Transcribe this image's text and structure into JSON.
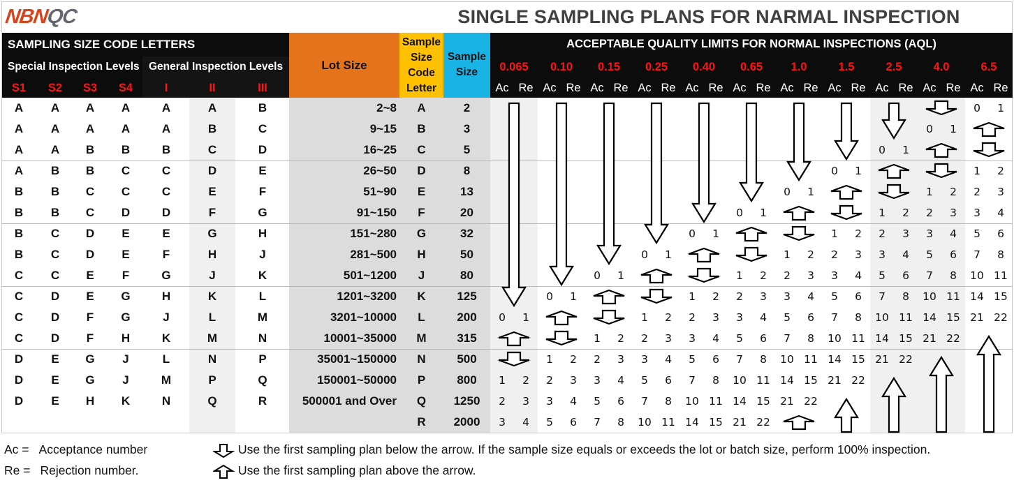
{
  "header": {
    "logo_part1": "NBN",
    "logo_part2": "QC",
    "title": "SINGLE SAMPLING PLANS FOR NARMAL INSPECTION"
  },
  "colors": {
    "logo_orange": "#d5441c",
    "logo_gray": "#66666e",
    "header_black": "#0c0c0c",
    "lot_size_orange": "#e5731c",
    "code_letter_yellow": "#ffc000",
    "sample_size_blue": "#1ab3e6",
    "level_red": "#ff1414",
    "band_gray": "#dcdcdc",
    "col_gray": "#f0f0f0"
  },
  "table_header": {
    "code_letters_title": "SAMPLING SIZE CODE LETTERS",
    "special_levels": "Special Inspection Levels",
    "general_levels": "General Inspection Levels",
    "levels": [
      "S1",
      "S2",
      "S3",
      "S4",
      "I",
      "II",
      "III"
    ],
    "lot_size": "Lot Size",
    "code_letter": [
      "Sample",
      "Size",
      "Code",
      "Letter"
    ],
    "sample_size": [
      "Sample",
      "Size"
    ],
    "aql_title": "ACCEPTABLE QUALITY LIMITS FOR NORMAL INSPECTIONS (AQL)",
    "aql_values": [
      "0.065",
      "0.10",
      "0.15",
      "0.25",
      "0.40",
      "0.65",
      "1.0",
      "1.5",
      "2.5",
      "4.0",
      "6.5"
    ],
    "ac_label": "Ac",
    "re_label": "Re"
  },
  "rows": [
    {
      "levels": [
        "A",
        "A",
        "A",
        "A",
        "A",
        "A",
        "B"
      ],
      "lot": "2~8",
      "code": "A",
      "size": "2",
      "aql": [
        "L",
        "L",
        "L",
        "L",
        "L",
        "L",
        "L",
        "L",
        "L",
        "D",
        "0 1"
      ]
    },
    {
      "levels": [
        "A",
        "A",
        "A",
        "A",
        "A",
        "B",
        "C"
      ],
      "lot": "9~15",
      "code": "B",
      "size": "3",
      "aql": [
        "L",
        "L",
        "L",
        "L",
        "L",
        "L",
        "L",
        "L",
        "L",
        "0 1",
        "U"
      ]
    },
    {
      "levels": [
        "A",
        "A",
        "B",
        "B",
        "B",
        "C",
        "D"
      ],
      "lot": "16~25",
      "code": "C",
      "size": "5",
      "aql": [
        "L",
        "L",
        "L",
        "L",
        "L",
        "L",
        "L",
        "L",
        "0 1",
        "U",
        "D"
      ]
    },
    {
      "levels": [
        "A",
        "B",
        "B",
        "C",
        "C",
        "D",
        "E"
      ],
      "lot": "26~50",
      "code": "D",
      "size": "8",
      "aql": [
        "L",
        "L",
        "L",
        "L",
        "L",
        "L",
        "L",
        "0 1",
        "U",
        "D",
        "1 2"
      ]
    },
    {
      "levels": [
        "B",
        "B",
        "C",
        "C",
        "C",
        "E",
        "F"
      ],
      "lot": "51~90",
      "code": "E",
      "size": "13",
      "aql": [
        "L",
        "L",
        "L",
        "L",
        "L",
        "L",
        "0 1",
        "U",
        "D",
        "1 2",
        "2 3"
      ]
    },
    {
      "levels": [
        "B",
        "B",
        "C",
        "D",
        "D",
        "F",
        "G"
      ],
      "lot": "91~150",
      "code": "F",
      "size": "20",
      "aql": [
        "L",
        "L",
        "L",
        "L",
        "L",
        "0 1",
        "U",
        "D",
        "1 2",
        "2 3",
        "3 4"
      ]
    },
    {
      "levels": [
        "B",
        "C",
        "D",
        "E",
        "E",
        "G",
        "H"
      ],
      "lot": "151~280",
      "code": "G",
      "size": "32",
      "aql": [
        "L",
        "L",
        "L",
        "L",
        "0 1",
        "U",
        "D",
        "1 2",
        "2 3",
        "3 4",
        "5 6"
      ]
    },
    {
      "levels": [
        "B",
        "C",
        "D",
        "E",
        "F",
        "H",
        "J"
      ],
      "lot": "281~500",
      "code": "H",
      "size": "50",
      "aql": [
        "L",
        "L",
        "L",
        "0 1",
        "U",
        "D",
        "1 2",
        "2 3",
        "3 4",
        "5 6",
        "7 8"
      ]
    },
    {
      "levels": [
        "C",
        "C",
        "E",
        "F",
        "G",
        "J",
        "K"
      ],
      "lot": "501~1200",
      "code": "J",
      "size": "80",
      "aql": [
        "L",
        "L",
        "0 1",
        "U",
        "D",
        "1 2",
        "2 3",
        "3 4",
        "5 6",
        "7 8",
        "10 11"
      ]
    },
    {
      "levels": [
        "C",
        "D",
        "E",
        "G",
        "H",
        "K",
        "L"
      ],
      "lot": "1201~3200",
      "code": "K",
      "size": "125",
      "aql": [
        "L",
        "0 1",
        "U",
        "D",
        "1 2",
        "2 3",
        "3 4",
        "5 6",
        "7 8",
        "10 11",
        "14 15"
      ]
    },
    {
      "levels": [
        "C",
        "D",
        "F",
        "G",
        "J",
        "L",
        "M"
      ],
      "lot": "3201~10000",
      "code": "L",
      "size": "200",
      "aql": [
        "0 1",
        "U",
        "D",
        "1 2",
        "2 3",
        "3 4",
        "5 6",
        "7 8",
        "10 11",
        "14 15",
        "21 22"
      ]
    },
    {
      "levels": [
        "C",
        "D",
        "F",
        "H",
        "K",
        "M",
        "N"
      ],
      "lot": "10001~35000",
      "code": "M",
      "size": "315",
      "aql": [
        "U",
        "D",
        "1 2",
        "2 3",
        "3 4",
        "5 6",
        "7 8",
        "10 11",
        "14 15",
        "21 22",
        "L"
      ]
    },
    {
      "levels": [
        "D",
        "E",
        "G",
        "J",
        "L",
        "N",
        "P"
      ],
      "lot": "35001~150000",
      "code": "N",
      "size": "500",
      "aql": [
        "D",
        "1 2",
        "2 3",
        "3 4",
        "5 6",
        "7 8",
        "10 11",
        "14 15",
        "21 22",
        "L",
        "L"
      ]
    },
    {
      "levels": [
        "D",
        "E",
        "G",
        "J",
        "M",
        "P",
        "Q"
      ],
      "lot": "150001~50000",
      "code": "P",
      "size": "800",
      "aql": [
        "1 2",
        "2 3",
        "3 4",
        "5 6",
        "7 8",
        "10 11",
        "14 15",
        "21 22",
        "L",
        "L",
        "L"
      ]
    },
    {
      "levels": [
        "D",
        "E",
        "H",
        "K",
        "N",
        "Q",
        "R"
      ],
      "lot": "500001 and Over",
      "code": "Q",
      "size": "1250",
      "aql": [
        "2 3",
        "3 4",
        "5 6",
        "7 8",
        "10 11",
        "14 15",
        "21 22",
        "L",
        "L",
        "L",
        "L"
      ]
    },
    {
      "levels": [
        "",
        "",
        "",
        "",
        "",
        "",
        ""
      ],
      "lot": "",
      "code": "R",
      "size": "2000",
      "aql": [
        "3 4",
        "5 6",
        "7 8",
        "10 11",
        "14 15",
        "21 22",
        "U",
        "L",
        "L",
        "L",
        "L"
      ]
    }
  ],
  "long_arrows": [
    {
      "col": 0,
      "dir": "down",
      "from": 0,
      "to": 9
    },
    {
      "col": 1,
      "dir": "down",
      "from": 0,
      "to": 8
    },
    {
      "col": 2,
      "dir": "down",
      "from": 0,
      "to": 7
    },
    {
      "col": 3,
      "dir": "down",
      "from": 0,
      "to": 6
    },
    {
      "col": 4,
      "dir": "down",
      "from": 0,
      "to": 5
    },
    {
      "col": 5,
      "dir": "down",
      "from": 0,
      "to": 4
    },
    {
      "col": 6,
      "dir": "down",
      "from": 0,
      "to": 3
    },
    {
      "col": 7,
      "dir": "down",
      "from": 0,
      "to": 2
    },
    {
      "col": 8,
      "dir": "down",
      "from": 0,
      "to": 1
    },
    {
      "col": 10,
      "dir": "up",
      "from": 11,
      "to": 15
    },
    {
      "col": 9,
      "dir": "up",
      "from": 12,
      "to": 15
    },
    {
      "col": 8,
      "dir": "up",
      "from": 13,
      "to": 15
    },
    {
      "col": 7,
      "dir": "up",
      "from": 14,
      "to": 15
    }
  ],
  "legend": {
    "ac_key": "Ac =",
    "ac_desc": "Acceptance number",
    "re_key": "Re =",
    "re_desc": "Rejection number.",
    "down_text": "Use the first sampling plan below the arrow. If the sample size equals or exceeds the lot or batch size, perform 100% inspection.",
    "up_text": "Use the first sampling plan above the arrow.",
    "down_icon": "arrow-down-outline",
    "up_icon": "arrow-up-outline"
  }
}
